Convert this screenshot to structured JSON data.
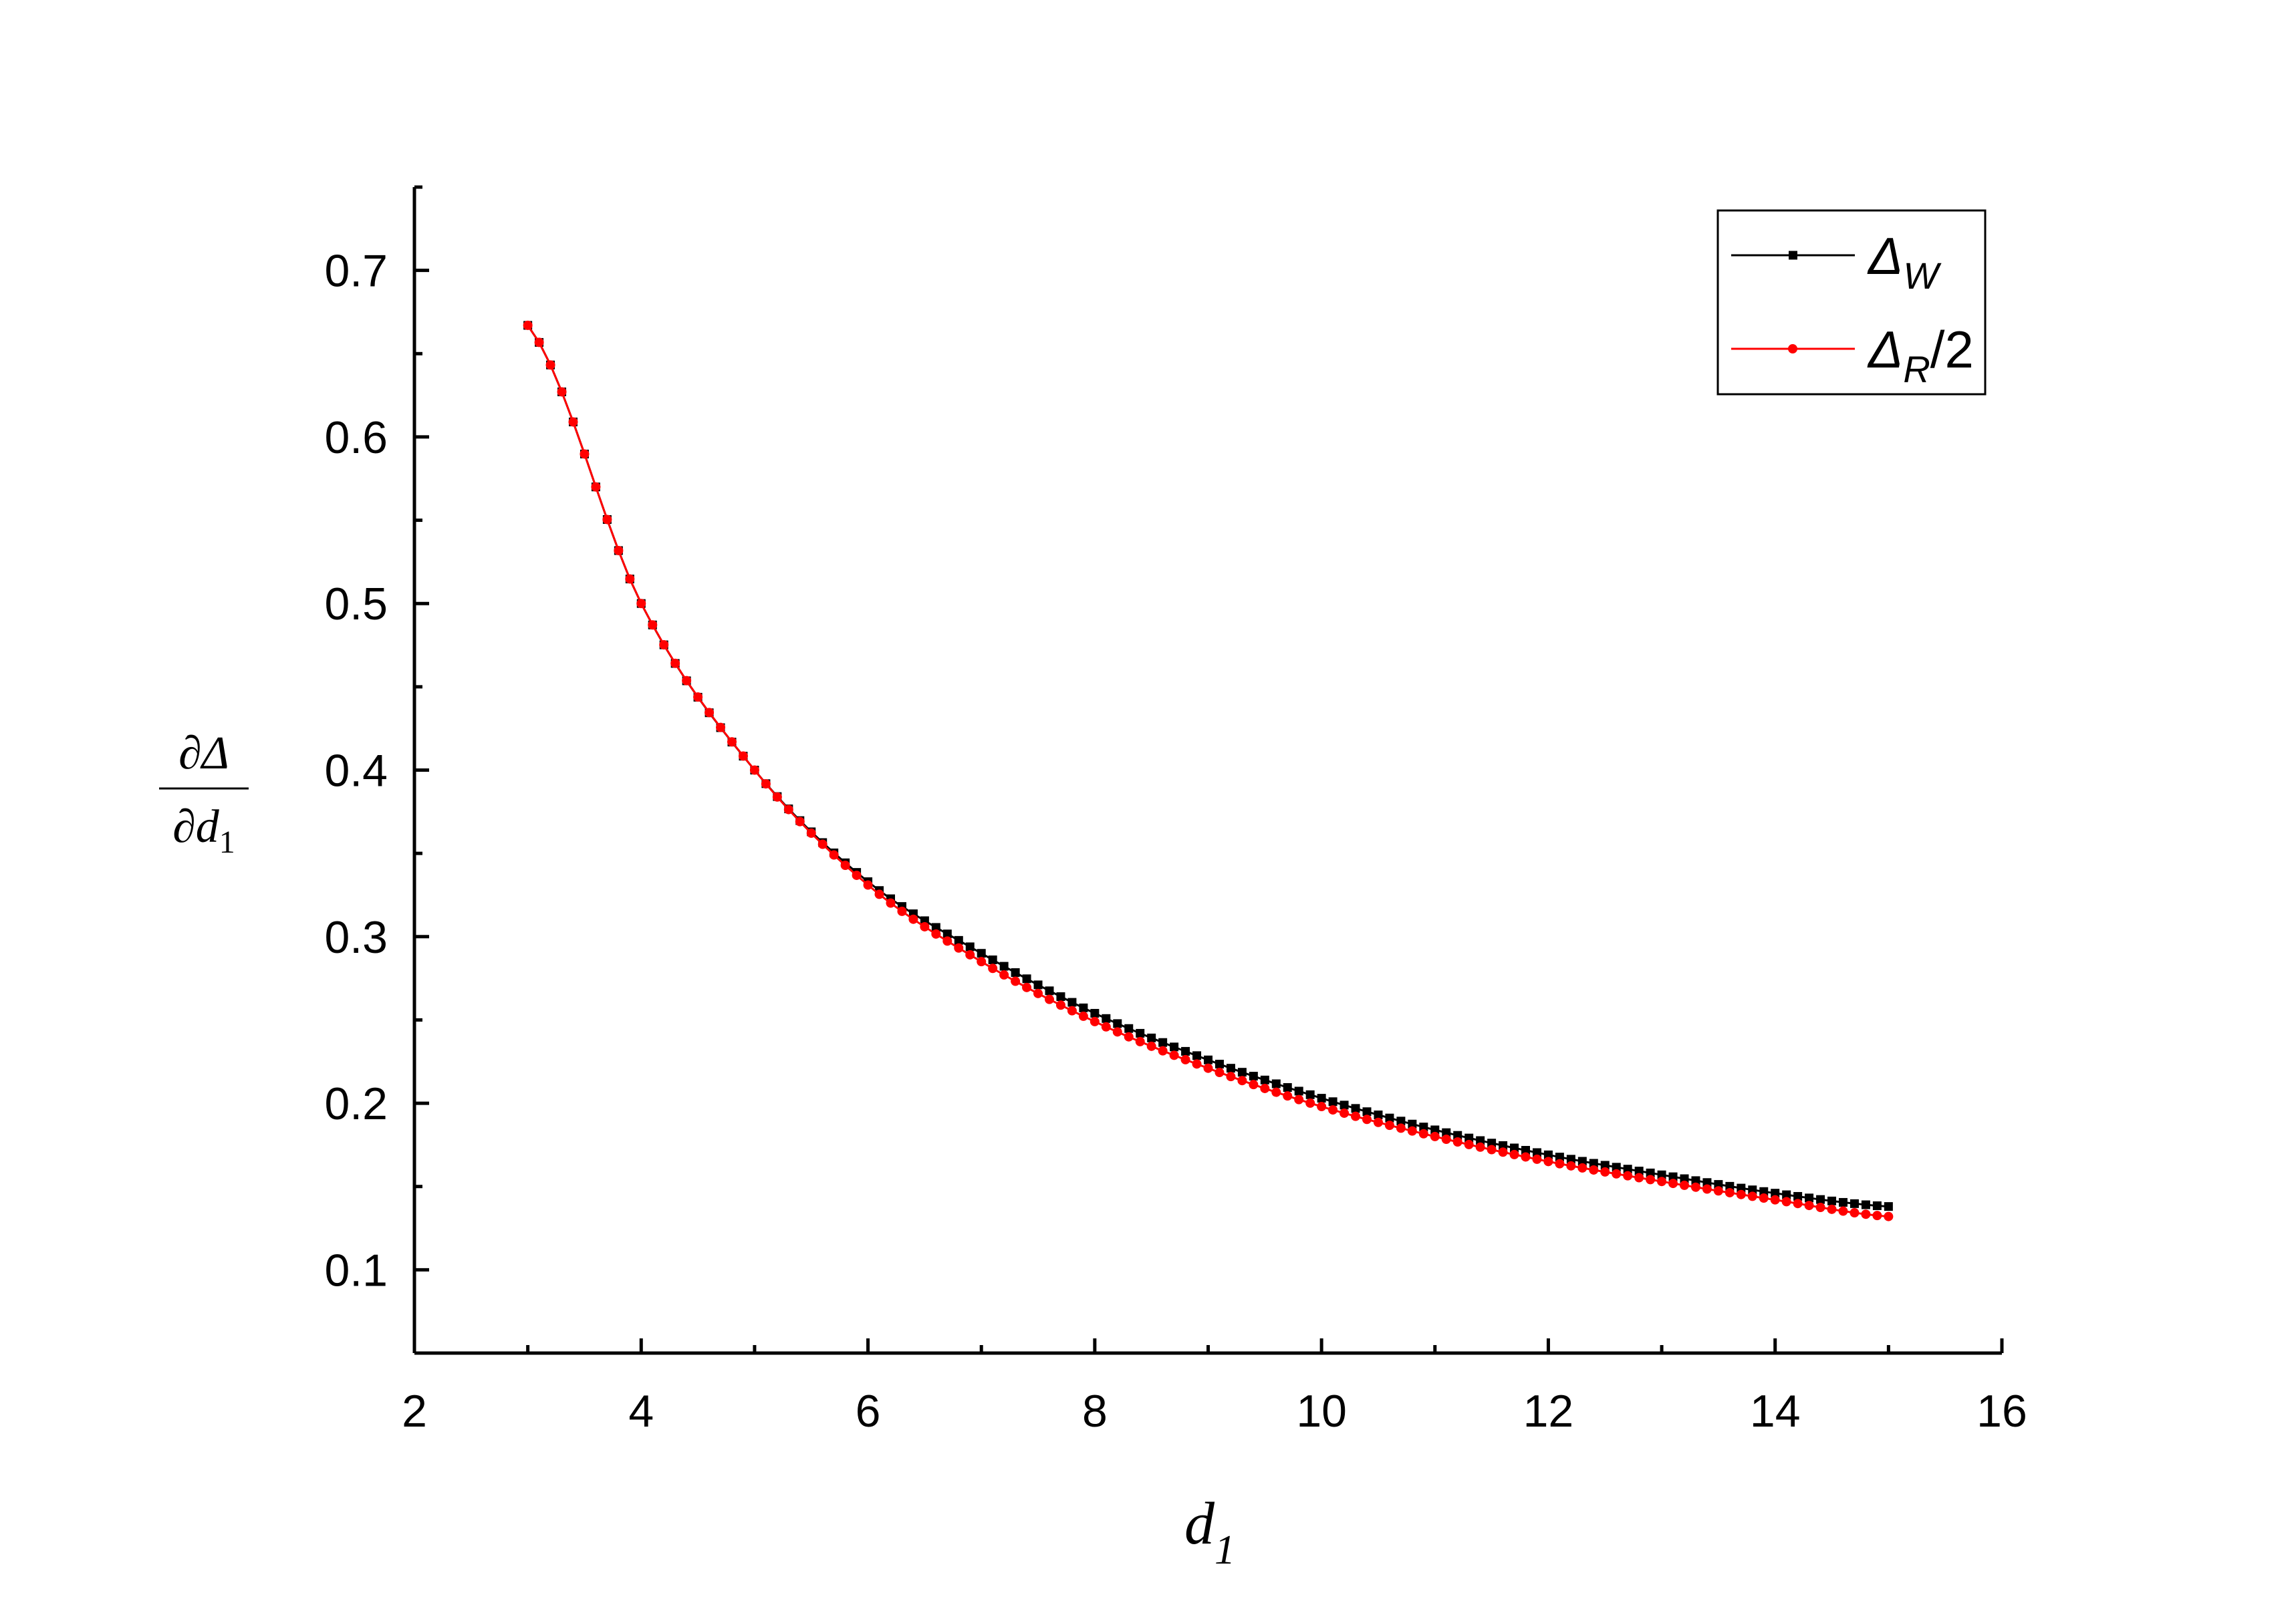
{
  "chart_data": {
    "type": "line",
    "xlabel": "d",
    "xlabel_sub": "1",
    "ylabel_num": "∂Δ",
    "ylabel_den": "∂d",
    "ylabel_den_sub": "1",
    "xlim": [
      2,
      16
    ],
    "ylim": [
      0.05,
      0.75
    ],
    "x_major_ticks": [
      2,
      4,
      6,
      8,
      10,
      12,
      14,
      16
    ],
    "x_minor_ticks": [
      3,
      5,
      7,
      9,
      11,
      13,
      15
    ],
    "y_major_ticks": [
      0.1,
      0.2,
      0.3,
      0.4,
      0.5,
      0.6,
      0.7
    ],
    "y_minor_ticks": [
      0.05,
      0.15,
      0.25,
      0.35,
      0.45,
      0.55,
      0.65,
      0.75
    ],
    "x_tick_labels": [
      "2",
      "4",
      "6",
      "8",
      "10",
      "12",
      "14",
      "16"
    ],
    "y_tick_labels": [
      "0.1",
      "0.2",
      "0.3",
      "0.4",
      "0.5",
      "0.6",
      "0.7"
    ],
    "grid": false,
    "legend_position": "top-right",
    "x": [
      3.0,
      4.0,
      5.0,
      6.0,
      7.0,
      8.0,
      9.0,
      10.0,
      11.0,
      12.0,
      13.0,
      14.0,
      15.0
    ],
    "series": [
      {
        "name": "Δ",
        "name_sub": "W",
        "name_suffix": "",
        "color": "#000000",
        "marker": "square",
        "values": [
          0.667,
          0.5,
          0.4,
          0.333,
          0.29,
          0.254,
          0.226,
          0.203,
          0.184,
          0.169,
          0.157,
          0.146,
          0.138
        ]
      },
      {
        "name": "Δ",
        "name_sub": "R",
        "name_suffix": "/2",
        "color": "#ff0000",
        "marker": "circle",
        "values": [
          0.667,
          0.5,
          0.4,
          0.331,
          0.285,
          0.249,
          0.221,
          0.198,
          0.18,
          0.165,
          0.153,
          0.142,
          0.132
        ]
      }
    ]
  }
}
